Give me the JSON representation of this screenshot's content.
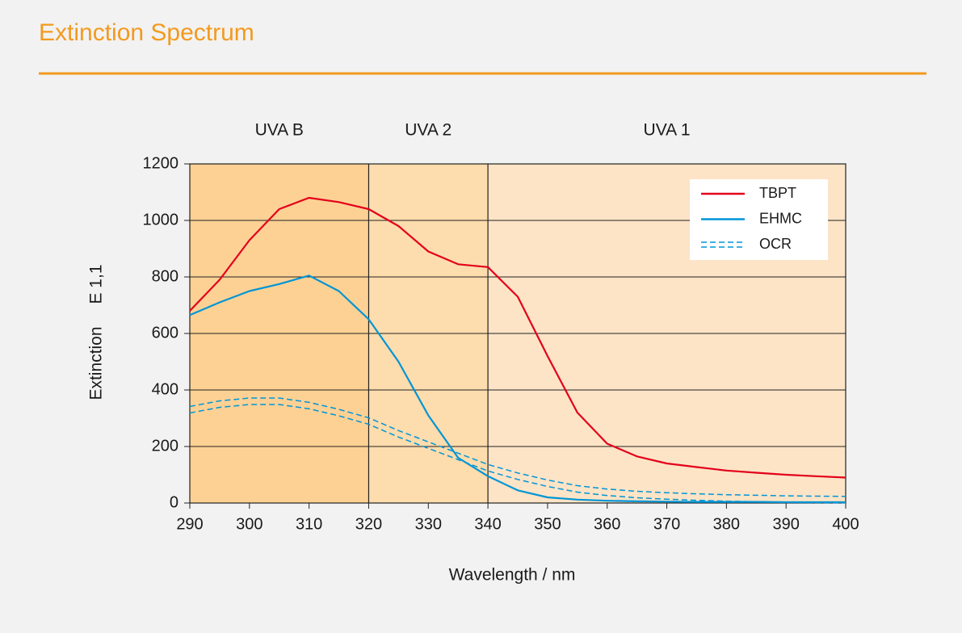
{
  "chart_data": {
    "type": "line",
    "title": "Extinction Spectrum",
    "x_label": "Wavelength / nm",
    "y_label": "Extinction",
    "y_unit": "E 1,1",
    "xlim": [
      290,
      400
    ],
    "ylim": [
      0,
      1200
    ],
    "xticks": [
      290,
      300,
      310,
      320,
      330,
      340,
      350,
      360,
      370,
      380,
      390,
      400
    ],
    "yticks": [
      0,
      200,
      400,
      600,
      800,
      1000,
      1200
    ],
    "grid": true,
    "legend": "upper right",
    "bands": [
      {
        "label": "UVA B",
        "from": 290,
        "to": 320,
        "color": "#fdd194"
      },
      {
        "label": "UVA 2",
        "from": 320,
        "to": 340,
        "color": "#fddcad"
      },
      {
        "label": "UVA 1",
        "from": 340,
        "to": 400,
        "color": "#fde4c6"
      }
    ],
    "x": [
      290,
      295,
      300,
      305,
      310,
      315,
      320,
      325,
      330,
      335,
      340,
      345,
      350,
      355,
      360,
      365,
      370,
      375,
      380,
      385,
      390,
      395,
      400
    ],
    "series": [
      {
        "name": "TBPT",
        "color": "#e3001b",
        "style": "solid",
        "values": [
          680,
          790,
          930,
          1040,
          1080,
          1065,
          1040,
          980,
          890,
          845,
          835,
          730,
          520,
          320,
          210,
          165,
          140,
          127,
          115,
          107,
          100,
          95,
          90
        ]
      },
      {
        "name": "EHMC",
        "color": "#0095d6",
        "style": "solid",
        "values": [
          665,
          710,
          750,
          775,
          805,
          750,
          650,
          500,
          310,
          160,
          95,
          45,
          20,
          12,
          8,
          6,
          5,
          4,
          4,
          4,
          3,
          3,
          3
        ]
      },
      {
        "name": "OCR",
        "color": "#0095d6",
        "style": "double-dashed",
        "values": [
          330,
          350,
          360,
          360,
          345,
          320,
          290,
          245,
          205,
          165,
          125,
          95,
          70,
          50,
          38,
          30,
          25,
          21,
          18,
          16,
          14,
          13,
          12
        ]
      }
    ]
  }
}
